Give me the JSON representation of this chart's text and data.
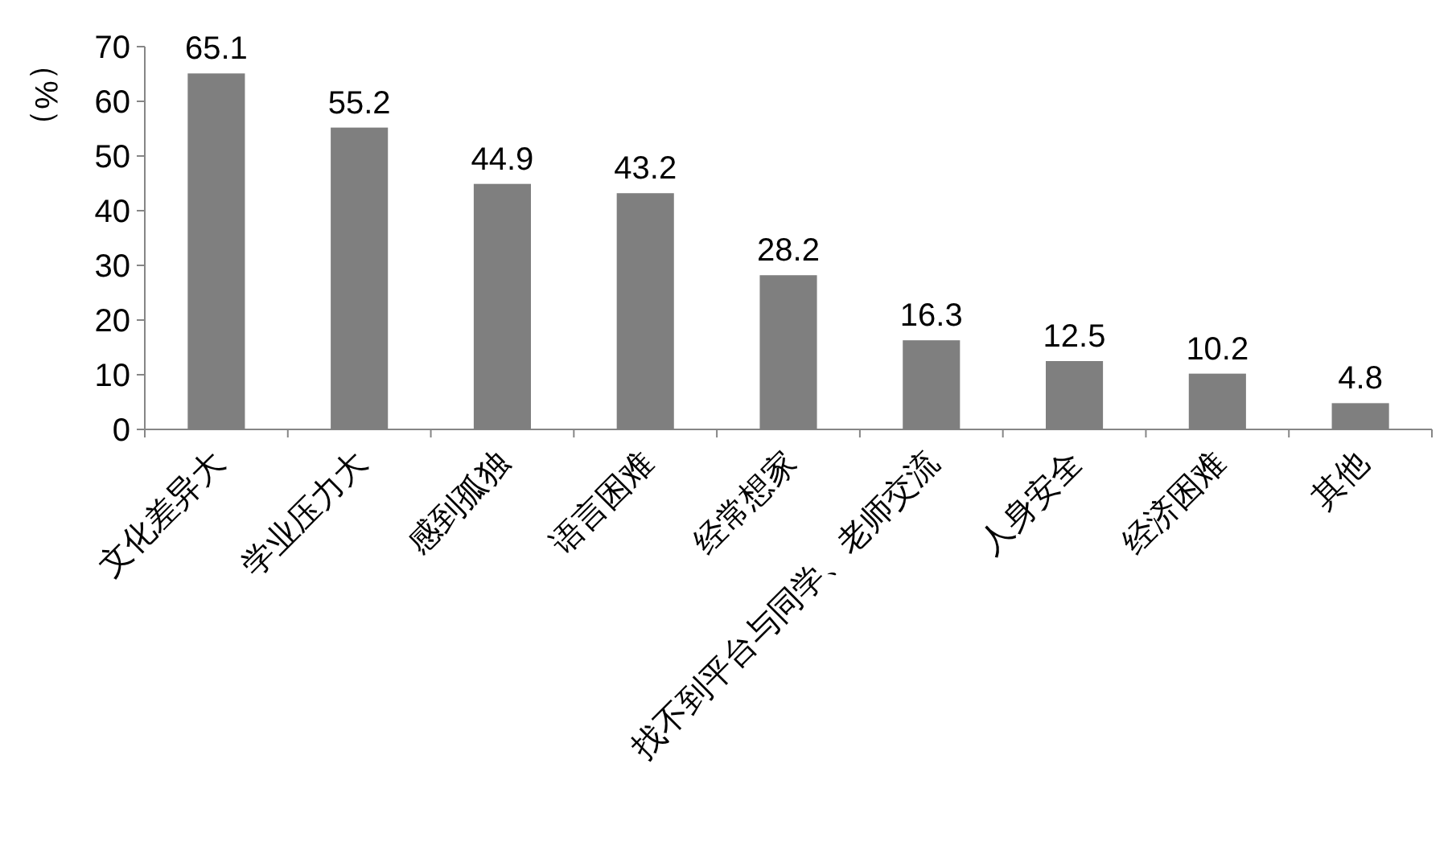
{
  "chart_data": {
    "type": "bar",
    "ylabel": "（%）",
    "categories": [
      "文化差异大",
      "学业压力大",
      "感到孤独",
      "语言困难",
      "经常想家",
      "找不到平台与同学、老师交流",
      "人身安全",
      "经济困难",
      "其他"
    ],
    "values": [
      65.1,
      55.2,
      44.9,
      43.2,
      28.2,
      16.3,
      12.5,
      10.2,
      4.8
    ],
    "color": "#7f7f7f",
    "ylim": [
      0,
      70
    ],
    "yticks": [
      0,
      10,
      20,
      30,
      40,
      50,
      60,
      70
    ],
    "grid": false,
    "data_labels": true
  }
}
